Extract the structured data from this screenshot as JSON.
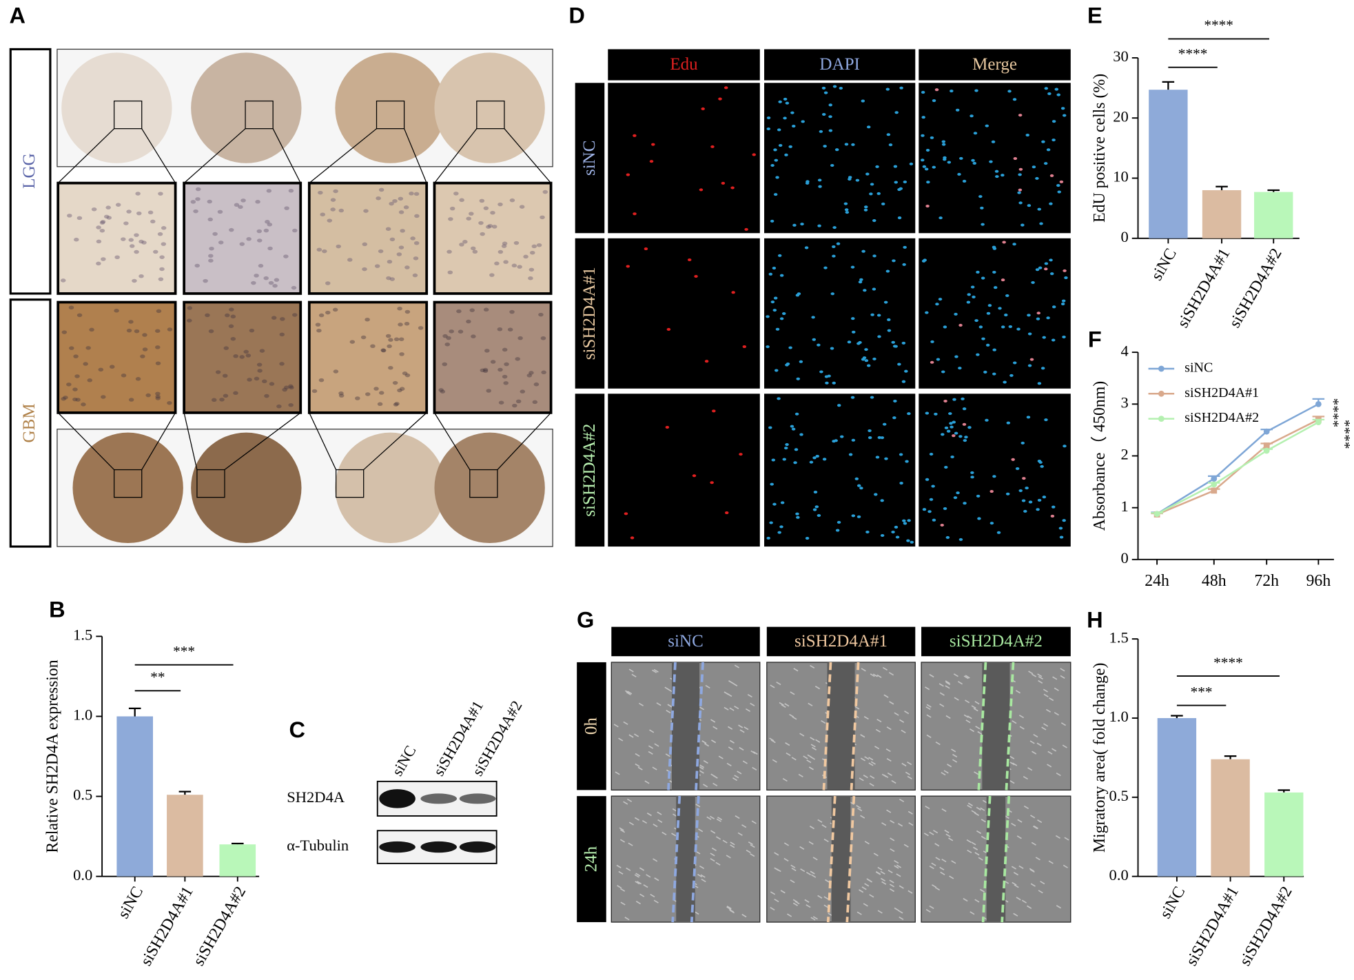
{
  "panel_labels": [
    "A",
    "B",
    "C",
    "D",
    "E",
    "F",
    "G",
    "H"
  ],
  "panel_a": {
    "rows": [
      "LGG",
      "GBM"
    ]
  },
  "panel_c": {
    "lanes": [
      "siNC",
      "siSH2D4A#1",
      "siSH2D4A#2"
    ],
    "bands": [
      "SH2D4A",
      "α-Tubulin"
    ]
  },
  "panel_d": {
    "columns": [
      "Edu",
      "DAPI",
      "Merge"
    ],
    "rows": [
      "siNC",
      "siSH2D4A#1",
      "siSH2D4A#2"
    ]
  },
  "panel_g": {
    "columns": [
      "siNC",
      "siSH2D4A#1",
      "siSH2D4A#2"
    ],
    "rows": [
      "0h",
      "24h"
    ]
  },
  "chart_data": [
    {
      "type": "bar",
      "ylabel": "Relative SH2D4A expression",
      "categories": [
        "siNC",
        "siSH2D4A#1",
        "siSH2D4A#2"
      ],
      "values": [
        1.0,
        0.51,
        0.2
      ],
      "errors": [
        0.05,
        0.02,
        0.005
      ],
      "colors": [
        "#8eaad9",
        "#dbbba1",
        "#b9f7b9"
      ],
      "ylim": [
        0,
        1.5
      ],
      "yticks": [
        {
          "value": 0,
          "label": "0.0"
        },
        0.5,
        {
          "value": 1,
          "label": "1.0"
        },
        1.5
      ],
      "annotations": [
        "**",
        "***"
      ]
    },
    {
      "type": "bar",
      "ylabel": "EdU positive cells (%)",
      "categories": [
        "siNC",
        "siSH2D4A#1",
        "siSH2D4A#2"
      ],
      "values": [
        24.7,
        8.0,
        7.7
      ],
      "errors": [
        1.3,
        0.6,
        0.3
      ],
      "colors": [
        "#8eaad9",
        "#dbbba1",
        "#b9f7b9"
      ],
      "ylim": [
        0,
        30
      ],
      "yticks": [
        0,
        10,
        20,
        30
      ],
      "annotations": [
        "****",
        "****"
      ]
    },
    {
      "type": "line",
      "ylabel": "Absorbance（ 450nm)",
      "categories": [
        "24h",
        "48h",
        "72h",
        "96h"
      ],
      "series": [
        {
          "name": "siNC",
          "color": "#7ea6d6",
          "values": [
            0.88,
            1.56,
            2.47,
            3.0
          ],
          "errors": [
            0.03,
            0.05,
            0.04,
            0.1
          ]
        },
        {
          "name": "siSH2D4A#1",
          "color": "#d9a98c",
          "values": [
            0.87,
            1.33,
            2.2,
            2.7
          ],
          "errors": [
            0.02,
            0.03,
            0.04,
            0.06
          ]
        },
        {
          "name": "siSH2D4A#2",
          "color": "#b4f0b0",
          "values": [
            0.88,
            1.45,
            2.1,
            2.65
          ],
          "errors": [
            0.02,
            0.03,
            0.03,
            0.05
          ]
        }
      ],
      "ylim": [
        0,
        4
      ],
      "yticks": [
        0,
        1,
        2,
        3,
        4
      ],
      "annotations": [
        "****",
        "****"
      ]
    },
    {
      "type": "bar",
      "ylabel": "Migratory area( fold change)",
      "categories": [
        "siNC",
        "siSH2D4A#1",
        "siSH2D4A#2"
      ],
      "values": [
        1.0,
        0.74,
        0.53
      ],
      "errors": [
        0.015,
        0.02,
        0.015
      ],
      "colors": [
        "#8eaad9",
        "#dbbba1",
        "#b9f7b9"
      ],
      "ylim": [
        0,
        1.5
      ],
      "yticks": [
        {
          "value": 0,
          "label": "0.0"
        },
        0.5,
        {
          "value": 1,
          "label": "1.0"
        },
        1.5
      ],
      "annotations": [
        "***",
        "****"
      ]
    }
  ]
}
